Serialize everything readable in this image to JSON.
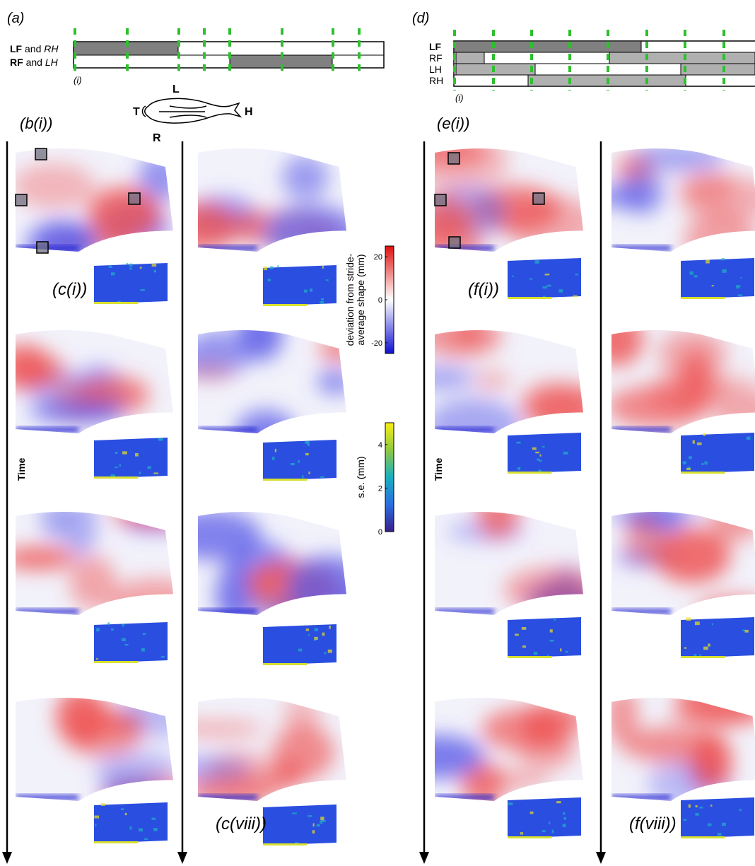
{
  "panels": {
    "a": "(a)",
    "d": "(d)",
    "a_sub": "(i)",
    "d_sub": "(i)",
    "b": "(b(i))",
    "e": "(e(i))",
    "c_first": "(c(i))",
    "c_last": "(c(viii))",
    "f_first": "(f(i))",
    "f_last": "(f(viii))"
  },
  "gait_a": {
    "rows": [
      {
        "limb1": "LF",
        "joiner": "and",
        "limb2": "RH"
      },
      {
        "limb1": "RF",
        "joiner": "and",
        "limb2": "LH"
      }
    ]
  },
  "gait_d": {
    "rows": [
      "LF",
      "RF",
      "LH",
      "RH"
    ]
  },
  "body": {
    "left": "L",
    "right": "R",
    "tail": "T",
    "head": "H"
  },
  "time_label": "Time",
  "colorbars": [
    {
      "label": [
        "deviation from stride-",
        "average shape (mm)"
      ],
      "lim": [
        -25,
        25
      ],
      "ticks": [
        20,
        0,
        -20
      ]
    },
    {
      "label": [
        "s.e. (mm)"
      ],
      "lim": [
        0,
        5
      ],
      "ticks": [
        0,
        2,
        4
      ]
    }
  ]
}
